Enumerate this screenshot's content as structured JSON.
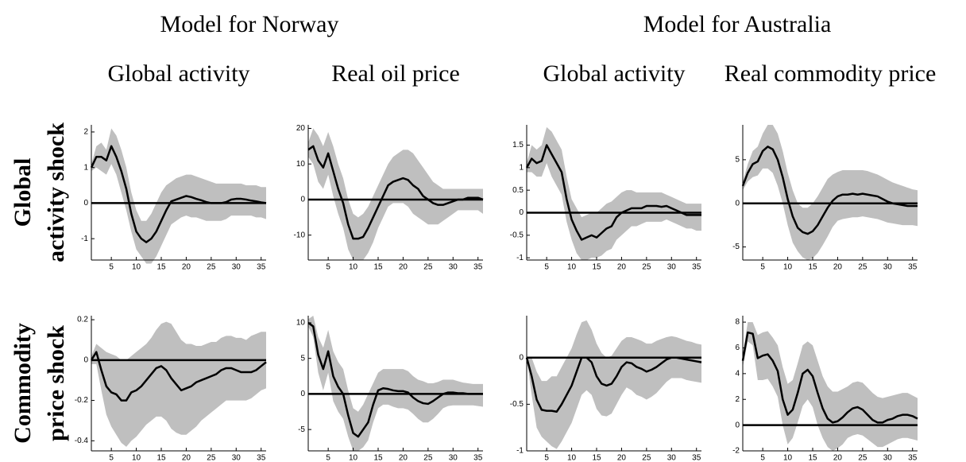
{
  "groups": [
    "Model for Norway",
    "Model for Australia"
  ],
  "row_labels": [
    [
      "Global",
      "activity shock"
    ],
    [
      "Commodity",
      "price shock"
    ]
  ],
  "chart_data": [
    {
      "type": "line",
      "title": "Global activity",
      "x": [
        1,
        2,
        3,
        4,
        5,
        6,
        7,
        8,
        9,
        10,
        11,
        12,
        13,
        14,
        15,
        16,
        17,
        18,
        19,
        20,
        21,
        22,
        23,
        24,
        25,
        26,
        27,
        28,
        29,
        30,
        31,
        32,
        33,
        34,
        35,
        36
      ],
      "xlim": [
        1,
        36
      ],
      "xticks": [
        5,
        10,
        15,
        20,
        25,
        30,
        35
      ],
      "ylim": [
        -1.6,
        2.2
      ],
      "yticks": [
        -1,
        0,
        1,
        2
      ],
      "color": "#000000",
      "band_color": "#bfbfbf",
      "values": [
        1.0,
        1.3,
        1.3,
        1.2,
        1.6,
        1.3,
        0.9,
        0.4,
        -0.3,
        -0.8,
        -1.0,
        -1.1,
        -1.0,
        -0.8,
        -0.5,
        -0.2,
        0.05,
        0.1,
        0.15,
        0.2,
        0.17,
        0.12,
        0.08,
        0.03,
        0.0,
        0.0,
        0.0,
        0.03,
        0.1,
        0.12,
        0.12,
        0.1,
        0.07,
        0.05,
        0.02,
        0.0
      ],
      "upper": [
        1.1,
        1.6,
        1.7,
        1.5,
        2.1,
        1.9,
        1.5,
        1.0,
        0.3,
        -0.2,
        -0.5,
        -0.5,
        -0.3,
        0.0,
        0.3,
        0.5,
        0.6,
        0.7,
        0.75,
        0.8,
        0.8,
        0.75,
        0.7,
        0.65,
        0.6,
        0.55,
        0.55,
        0.55,
        0.55,
        0.55,
        0.55,
        0.5,
        0.5,
        0.5,
        0.45,
        0.45
      ],
      "lower": [
        0.9,
        1.0,
        0.9,
        0.8,
        1.1,
        0.8,
        0.3,
        -0.2,
        -0.8,
        -1.3,
        -1.5,
        -1.7,
        -1.7,
        -1.5,
        -1.2,
        -0.9,
        -0.6,
        -0.5,
        -0.4,
        -0.35,
        -0.4,
        -0.4,
        -0.45,
        -0.5,
        -0.5,
        -0.5,
        -0.5,
        -0.45,
        -0.35,
        -0.35,
        -0.35,
        -0.35,
        -0.35,
        -0.4,
        -0.4,
        -0.45
      ]
    },
    {
      "type": "line",
      "title": "Real oil price",
      "x": [
        1,
        2,
        3,
        4,
        5,
        6,
        7,
        8,
        9,
        10,
        11,
        12,
        13,
        14,
        15,
        16,
        17,
        18,
        19,
        20,
        21,
        22,
        23,
        24,
        25,
        26,
        27,
        28,
        29,
        30,
        31,
        32,
        33,
        34,
        35,
        36
      ],
      "xlim": [
        1,
        36
      ],
      "xticks": [
        5,
        10,
        15,
        20,
        25,
        30,
        35
      ],
      "ylim": [
        -17,
        21
      ],
      "yticks": [
        -10,
        0,
        10,
        20
      ],
      "color": "#000000",
      "band_color": "#bfbfbf",
      "values": [
        14,
        15,
        11,
        9,
        13,
        8,
        3,
        -1,
        -7,
        -11,
        -11,
        -10.5,
        -8,
        -5,
        -2,
        1,
        4,
        5,
        5.5,
        6,
        5.5,
        4,
        3,
        1,
        0,
        -1,
        -1.5,
        -1.5,
        -1,
        -0.5,
        0,
        0,
        0.5,
        0.5,
        0.5,
        0
      ],
      "upper": [
        16,
        20,
        18,
        15,
        19,
        15,
        10,
        6,
        0,
        -4,
        -5,
        -4,
        -2,
        1,
        4,
        7,
        10,
        12,
        13,
        14,
        14,
        13,
        11,
        9,
        7,
        5,
        4,
        3,
        3,
        3,
        3,
        3,
        3,
        3,
        3,
        3
      ],
      "lower": [
        12,
        10,
        5,
        3,
        7,
        1,
        -4,
        -8,
        -14,
        -17,
        -17,
        -17,
        -15,
        -12,
        -8,
        -5,
        -2,
        -1,
        -1,
        -1,
        -2,
        -4,
        -5,
        -6,
        -7,
        -7,
        -7,
        -6,
        -5,
        -4,
        -3,
        -3,
        -3,
        -3,
        -3,
        -4
      ]
    },
    {
      "type": "line",
      "title": "Global activity",
      "x": [
        1,
        2,
        3,
        4,
        5,
        6,
        7,
        8,
        9,
        10,
        11,
        12,
        13,
        14,
        15,
        16,
        17,
        18,
        19,
        20,
        21,
        22,
        23,
        24,
        25,
        26,
        27,
        28,
        29,
        30,
        31,
        32,
        33,
        34,
        35,
        36
      ],
      "xlim": [
        1,
        36
      ],
      "xticks": [
        5,
        10,
        15,
        20,
        25,
        30,
        35
      ],
      "ylim": [
        -1.05,
        1.95
      ],
      "yticks": [
        -1,
        -0.5,
        0,
        0.5,
        1,
        1.5
      ],
      "color": "#000000",
      "band_color": "#bfbfbf",
      "values": [
        1.0,
        1.2,
        1.1,
        1.15,
        1.5,
        1.3,
        1.1,
        0.9,
        0.3,
        -0.15,
        -0.4,
        -0.6,
        -0.55,
        -0.5,
        -0.55,
        -0.45,
        -0.35,
        -0.3,
        -0.1,
        0.0,
        0.05,
        0.1,
        0.1,
        0.1,
        0.15,
        0.15,
        0.15,
        0.13,
        0.15,
        0.1,
        0.05,
        0.0,
        -0.05,
        -0.05,
        -0.05,
        -0.05
      ],
      "upper": [
        1.1,
        1.5,
        1.4,
        1.5,
        1.9,
        1.8,
        1.6,
        1.4,
        0.8,
        0.3,
        0.1,
        -0.1,
        -0.05,
        0.0,
        0.0,
        0.1,
        0.2,
        0.25,
        0.35,
        0.45,
        0.5,
        0.5,
        0.45,
        0.45,
        0.45,
        0.45,
        0.45,
        0.45,
        0.4,
        0.35,
        0.3,
        0.25,
        0.2,
        0.2,
        0.2,
        0.2
      ],
      "lower": [
        0.9,
        0.9,
        0.8,
        0.8,
        1.1,
        0.8,
        0.6,
        0.4,
        -0.2,
        -0.6,
        -0.9,
        -1.05,
        -1.05,
        -1.0,
        -1.0,
        -0.95,
        -0.85,
        -0.8,
        -0.6,
        -0.5,
        -0.4,
        -0.3,
        -0.3,
        -0.25,
        -0.2,
        -0.2,
        -0.2,
        -0.2,
        -0.15,
        -0.2,
        -0.25,
        -0.3,
        -0.35,
        -0.35,
        -0.4,
        -0.4
      ]
    },
    {
      "type": "line",
      "title": "Real commodity price",
      "x": [
        1,
        2,
        3,
        4,
        5,
        6,
        7,
        8,
        9,
        10,
        11,
        12,
        13,
        14,
        15,
        16,
        17,
        18,
        19,
        20,
        21,
        22,
        23,
        24,
        25,
        26,
        27,
        28,
        29,
        30,
        31,
        32,
        33,
        34,
        35,
        36
      ],
      "xlim": [
        1,
        36
      ],
      "xticks": [
        5,
        10,
        15,
        20,
        25,
        30,
        35
      ],
      "ylim": [
        -6.5,
        9
      ],
      "yticks": [
        -5,
        0,
        5
      ],
      "color": "#000000",
      "band_color": "#bfbfbf",
      "values": [
        2,
        3.5,
        4.5,
        4.8,
        6,
        6.5,
        6.2,
        5,
        3,
        0.5,
        -1.5,
        -2.8,
        -3.3,
        -3.5,
        -3.2,
        -2.5,
        -1.5,
        -0.5,
        0.3,
        0.8,
        1,
        1,
        1.1,
        1,
        1.1,
        1,
        0.9,
        0.8,
        0.5,
        0.2,
        0,
        -0.1,
        -0.2,
        -0.3,
        -0.3,
        -0.3
      ],
      "upper": [
        2.5,
        4.5,
        6,
        6.5,
        8,
        9,
        9,
        8,
        6,
        3.5,
        1.5,
        0,
        -0.5,
        -0.5,
        0,
        0.8,
        1.8,
        2.8,
        3.3,
        3.6,
        3.8,
        3.8,
        3.8,
        3.8,
        3.8,
        3.7,
        3.5,
        3.3,
        3,
        2.7,
        2.4,
        2.2,
        2,
        1.8,
        1.6,
        1.5
      ],
      "lower": [
        1.5,
        2.5,
        3,
        3.2,
        4,
        4,
        3.5,
        2,
        0,
        -2.5,
        -4.5,
        -5.5,
        -6.2,
        -6.5,
        -6.3,
        -5.7,
        -4.8,
        -3.8,
        -2.7,
        -2,
        -1.8,
        -1.7,
        -1.6,
        -1.6,
        -1.5,
        -1.6,
        -1.7,
        -1.8,
        -2,
        -2.2,
        -2.3,
        -2.4,
        -2.5,
        -2.5,
        -2.5,
        -2.6
      ]
    },
    {
      "type": "line",
      "x": [
        1,
        2,
        3,
        4,
        5,
        6,
        7,
        8,
        9,
        10,
        11,
        12,
        13,
        14,
        15,
        16,
        17,
        18,
        19,
        20,
        21,
        22,
        23,
        24,
        25,
        26,
        27,
        28,
        29,
        30,
        31,
        32,
        33,
        34,
        35,
        36
      ],
      "xlim": [
        1,
        36
      ],
      "xticks": [
        5,
        10,
        15,
        20,
        25,
        30,
        35
      ],
      "ylim": [
        -0.45,
        0.22
      ],
      "yticks": [
        -0.4,
        -0.2,
        0,
        0.2
      ],
      "color": "#000000",
      "band_color": "#bfbfbf",
      "values": [
        0,
        0.04,
        -0.05,
        -0.13,
        -0.16,
        -0.17,
        -0.2,
        -0.2,
        -0.16,
        -0.15,
        -0.13,
        -0.1,
        -0.07,
        -0.04,
        -0.03,
        -0.05,
        -0.09,
        -0.12,
        -0.15,
        -0.14,
        -0.13,
        -0.11,
        -0.1,
        -0.09,
        -0.08,
        -0.07,
        -0.05,
        -0.04,
        -0.04,
        -0.05,
        -0.06,
        -0.06,
        -0.06,
        -0.05,
        -0.03,
        -0.01
      ],
      "upper": [
        0.02,
        0.08,
        0.06,
        0.04,
        0.03,
        0.02,
        0.0,
        0.0,
        0.02,
        0.04,
        0.06,
        0.08,
        0.11,
        0.15,
        0.18,
        0.19,
        0.18,
        0.14,
        0.1,
        0.08,
        0.08,
        0.07,
        0.07,
        0.08,
        0.09,
        0.09,
        0.11,
        0.12,
        0.12,
        0.11,
        0.11,
        0.1,
        0.12,
        0.13,
        0.14,
        0.14
      ],
      "lower": [
        -0.02,
        -0.02,
        -0.15,
        -0.27,
        -0.33,
        -0.37,
        -0.41,
        -0.43,
        -0.4,
        -0.38,
        -0.35,
        -0.32,
        -0.3,
        -0.28,
        -0.28,
        -0.3,
        -0.34,
        -0.36,
        -0.37,
        -0.37,
        -0.35,
        -0.33,
        -0.3,
        -0.28,
        -0.26,
        -0.24,
        -0.22,
        -0.2,
        -0.2,
        -0.2,
        -0.2,
        -0.2,
        -0.19,
        -0.17,
        -0.15,
        -0.14
      ]
    },
    {
      "type": "line",
      "x": [
        1,
        2,
        3,
        4,
        5,
        6,
        7,
        8,
        9,
        10,
        11,
        12,
        13,
        14,
        15,
        16,
        17,
        18,
        19,
        20,
        21,
        22,
        23,
        24,
        25,
        26,
        27,
        28,
        29,
        30,
        31,
        32,
        33,
        34,
        35,
        36
      ],
      "xlim": [
        1,
        36
      ],
      "xticks": [
        5,
        10,
        15,
        20,
        25,
        30,
        35
      ],
      "ylim": [
        -8,
        11
      ],
      "yticks": [
        -5,
        0,
        5,
        10
      ],
      "color": "#000000",
      "band_color": "#bfbfbf",
      "values": [
        10,
        9.5,
        5.5,
        3.5,
        6,
        2.5,
        1,
        0,
        -3,
        -5.5,
        -6,
        -5,
        -4,
        -1.5,
        0.5,
        0.8,
        0.7,
        0.5,
        0.4,
        0.4,
        0.2,
        -0.5,
        -1,
        -1.3,
        -1.4,
        -1,
        -0.5,
        0,
        0.2,
        0.2,
        0.1,
        0.1,
        0,
        0,
        0,
        0
      ],
      "upper": [
        10.5,
        11,
        8,
        6.5,
        9,
        6,
        4.5,
        3.5,
        0.5,
        -2,
        -2.5,
        -1.5,
        0,
        1.5,
        3,
        3.5,
        3.5,
        3.5,
        3.5,
        3.5,
        3.2,
        2.5,
        2,
        1.8,
        1.5,
        1.5,
        1.7,
        2,
        2,
        2,
        1.8,
        1.6,
        1.5,
        1.4,
        1.4,
        1.4
      ],
      "lower": [
        9.5,
        8,
        3,
        0.5,
        3,
        -1,
        -2.5,
        -3.5,
        -6,
        -8,
        -8,
        -7.5,
        -6.5,
        -4,
        -2,
        -1.5,
        -1.5,
        -1.8,
        -2,
        -2,
        -2.2,
        -2.8,
        -3.5,
        -4,
        -4,
        -3.5,
        -2.8,
        -2,
        -1.7,
        -1.6,
        -1.6,
        -1.6,
        -1.6,
        -1.6,
        -1.7,
        -1.8
      ]
    },
    {
      "type": "line",
      "x": [
        1,
        2,
        3,
        4,
        5,
        6,
        7,
        8,
        9,
        10,
        11,
        12,
        13,
        14,
        15,
        16,
        17,
        18,
        19,
        20,
        21,
        22,
        23,
        24,
        25,
        26,
        27,
        28,
        29,
        30,
        31,
        32,
        33,
        34,
        35,
        36
      ],
      "xlim": [
        1,
        36
      ],
      "xticks": [
        5,
        10,
        15,
        20,
        25,
        30,
        35
      ],
      "ylim": [
        -1,
        0.45
      ],
      "yticks": [
        -1,
        -0.5,
        0
      ],
      "color": "#000000",
      "band_color": "#bfbfbf",
      "values": [
        0,
        -0.2,
        -0.45,
        -0.56,
        -0.57,
        -0.57,
        -0.58,
        -0.5,
        -0.4,
        -0.3,
        -0.15,
        0,
        0.0,
        -0.05,
        -0.2,
        -0.28,
        -0.3,
        -0.28,
        -0.2,
        -0.1,
        -0.05,
        -0.06,
        -0.1,
        -0.12,
        -0.15,
        -0.13,
        -0.1,
        -0.06,
        -0.02,
        0.0,
        0.0,
        -0.01,
        -0.02,
        -0.03,
        -0.04,
        -0.05
      ],
      "upper": [
        0,
        0,
        -0.15,
        -0.25,
        -0.25,
        -0.2,
        -0.2,
        -0.1,
        0.0,
        0.1,
        0.25,
        0.38,
        0.4,
        0.3,
        0.15,
        0.05,
        0,
        0.02,
        0.1,
        0.18,
        0.22,
        0.22,
        0.2,
        0.18,
        0.15,
        0.15,
        0.18,
        0.2,
        0.22,
        0.23,
        0.22,
        0.2,
        0.18,
        0.17,
        0.15,
        0.14
      ],
      "lower": [
        0,
        -0.4,
        -0.75,
        -0.85,
        -0.9,
        -0.95,
        -0.98,
        -0.9,
        -0.8,
        -0.7,
        -0.55,
        -0.4,
        -0.35,
        -0.4,
        -0.55,
        -0.62,
        -0.63,
        -0.6,
        -0.5,
        -0.4,
        -0.32,
        -0.35,
        -0.4,
        -0.42,
        -0.45,
        -0.42,
        -0.38,
        -0.32,
        -0.26,
        -0.22,
        -0.22,
        -0.22,
        -0.24,
        -0.25,
        -0.26,
        -0.27
      ]
    },
    {
      "type": "line",
      "x": [
        1,
        2,
        3,
        4,
        5,
        6,
        7,
        8,
        9,
        10,
        11,
        12,
        13,
        14,
        15,
        16,
        17,
        18,
        19,
        20,
        21,
        22,
        23,
        24,
        25,
        26,
        27,
        28,
        29,
        30,
        31,
        32,
        33,
        34,
        35,
        36
      ],
      "xlim": [
        1,
        36
      ],
      "xticks": [
        5,
        10,
        15,
        20,
        25,
        30,
        35
      ],
      "ylim": [
        -2,
        8.5
      ],
      "yticks": [
        -2,
        0,
        2,
        4,
        6,
        8
      ],
      "color": "#000000",
      "band_color": "#bfbfbf",
      "values": [
        5,
        7.2,
        7.1,
        5.2,
        5.4,
        5.5,
        5,
        4.2,
        2,
        0.8,
        1.2,
        2.5,
        4,
        4.3,
        3.8,
        2.5,
        1.3,
        0.5,
        0.2,
        0.3,
        0.6,
        1,
        1.3,
        1.4,
        1.2,
        0.8,
        0.4,
        0.2,
        0.2,
        0.4,
        0.5,
        0.7,
        0.8,
        0.8,
        0.7,
        0.5
      ],
      "upper": [
        5.5,
        8,
        8,
        7,
        7.2,
        7.3,
        6.8,
        6.2,
        4.5,
        3.2,
        3.5,
        4.8,
        6.2,
        6.5,
        6.2,
        5,
        3.8,
        3,
        2.6,
        2.6,
        2.8,
        3,
        3.3,
        3.4,
        3.3,
        2.9,
        2.5,
        2.2,
        2.1,
        2.2,
        2.3,
        2.4,
        2.5,
        2.5,
        2.3,
        2.1
      ],
      "lower": [
        4.5,
        6.5,
        6.2,
        3.5,
        3.5,
        3.6,
        3,
        2.2,
        0,
        -1.5,
        -1,
        0.2,
        1.5,
        2,
        1.4,
        0,
        -1,
        -1.7,
        -2,
        -1.8,
        -1.5,
        -1,
        -0.8,
        -0.7,
        -0.8,
        -1.1,
        -1.4,
        -1.7,
        -1.7,
        -1.5,
        -1.3,
        -1.1,
        -1,
        -1,
        -1.1,
        -1.2
      ]
    }
  ]
}
